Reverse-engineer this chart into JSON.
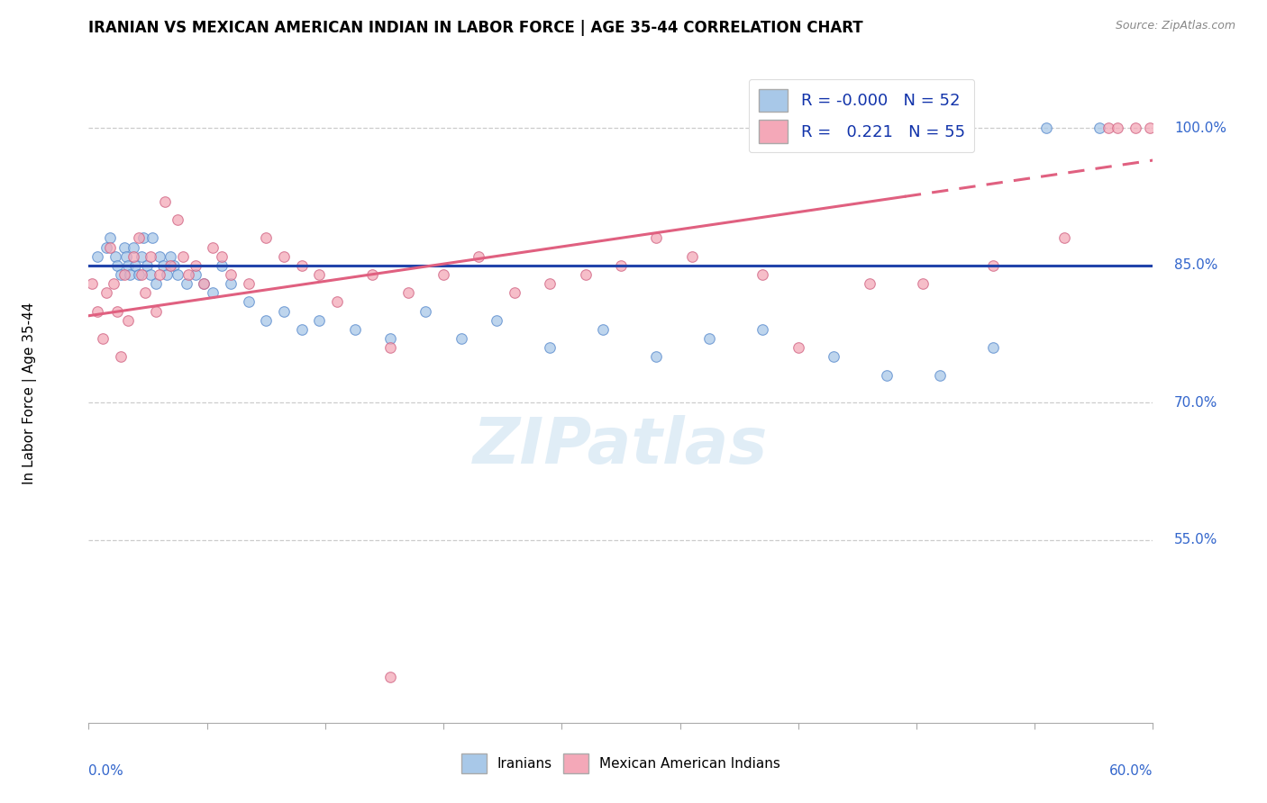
{
  "title": "IRANIAN VS MEXICAN AMERICAN INDIAN IN LABOR FORCE | AGE 35-44 CORRELATION CHART",
  "source": "Source: ZipAtlas.com",
  "ylabel": "In Labor Force | Age 35-44",
  "ytick_labels": [
    "55.0%",
    "70.0%",
    "85.0%",
    "100.0%"
  ],
  "ytick_values": [
    0.55,
    0.7,
    0.85,
    1.0
  ],
  "xlim": [
    0.0,
    0.6
  ],
  "ylim": [
    0.35,
    1.07
  ],
  "iranian_color": "#a8c8e8",
  "iranian_edge": "#5588cc",
  "mexican_color": "#f4a8b8",
  "mexican_edge": "#d06080",
  "trend_iranian_color": "#2244aa",
  "trend_mexican_color": "#e06080",
  "watermark": "ZIPatlas",
  "iranian_R": -0.0,
  "mexican_R": 0.221,
  "iranian_N": 52,
  "mexican_N": 55,
  "iranians_x": [
    0.005,
    0.01,
    0.012,
    0.015,
    0.016,
    0.018,
    0.02,
    0.021,
    0.022,
    0.023,
    0.025,
    0.026,
    0.028,
    0.03,
    0.031,
    0.033,
    0.035,
    0.036,
    0.038,
    0.04,
    0.042,
    0.044,
    0.046,
    0.048,
    0.05,
    0.055,
    0.06,
    0.065,
    0.07,
    0.075,
    0.08,
    0.09,
    0.1,
    0.11,
    0.12,
    0.13,
    0.15,
    0.17,
    0.19,
    0.21,
    0.23,
    0.26,
    0.29,
    0.32,
    0.35,
    0.38,
    0.42,
    0.45,
    0.48,
    0.51,
    0.54,
    0.57
  ],
  "iranians_y": [
    0.86,
    0.87,
    0.88,
    0.86,
    0.85,
    0.84,
    0.87,
    0.86,
    0.85,
    0.84,
    0.87,
    0.85,
    0.84,
    0.86,
    0.88,
    0.85,
    0.84,
    0.88,
    0.83,
    0.86,
    0.85,
    0.84,
    0.86,
    0.85,
    0.84,
    0.83,
    0.84,
    0.83,
    0.82,
    0.85,
    0.83,
    0.81,
    0.79,
    0.8,
    0.78,
    0.79,
    0.78,
    0.77,
    0.8,
    0.77,
    0.79,
    0.76,
    0.78,
    0.75,
    0.77,
    0.78,
    0.75,
    0.73,
    0.73,
    0.76,
    1.0,
    1.0
  ],
  "mexicans_x": [
    0.002,
    0.005,
    0.008,
    0.01,
    0.012,
    0.014,
    0.016,
    0.018,
    0.02,
    0.022,
    0.025,
    0.028,
    0.03,
    0.032,
    0.035,
    0.038,
    0.04,
    0.043,
    0.046,
    0.05,
    0.053,
    0.056,
    0.06,
    0.065,
    0.07,
    0.075,
    0.08,
    0.09,
    0.1,
    0.11,
    0.12,
    0.13,
    0.14,
    0.16,
    0.17,
    0.18,
    0.2,
    0.22,
    0.24,
    0.26,
    0.28,
    0.3,
    0.32,
    0.34,
    0.38,
    0.4,
    0.44,
    0.47,
    0.51,
    0.55,
    0.575,
    0.58,
    0.59,
    0.598,
    0.17
  ],
  "mexicans_y": [
    0.83,
    0.8,
    0.77,
    0.82,
    0.87,
    0.83,
    0.8,
    0.75,
    0.84,
    0.79,
    0.86,
    0.88,
    0.84,
    0.82,
    0.86,
    0.8,
    0.84,
    0.92,
    0.85,
    0.9,
    0.86,
    0.84,
    0.85,
    0.83,
    0.87,
    0.86,
    0.84,
    0.83,
    0.88,
    0.86,
    0.85,
    0.84,
    0.81,
    0.84,
    0.76,
    0.82,
    0.84,
    0.86,
    0.82,
    0.83,
    0.84,
    0.85,
    0.88,
    0.86,
    0.84,
    0.76,
    0.83,
    0.83,
    0.85,
    0.88,
    1.0,
    1.0,
    1.0,
    1.0,
    0.4
  ],
  "trend_blue_y": 0.85,
  "trend_pink_x0": 0.0,
  "trend_pink_y0": 0.795,
  "trend_pink_x1": 0.6,
  "trend_pink_y1": 0.965,
  "trend_pink_solid_end": 0.46,
  "trend_pink_dash_start": 0.46
}
